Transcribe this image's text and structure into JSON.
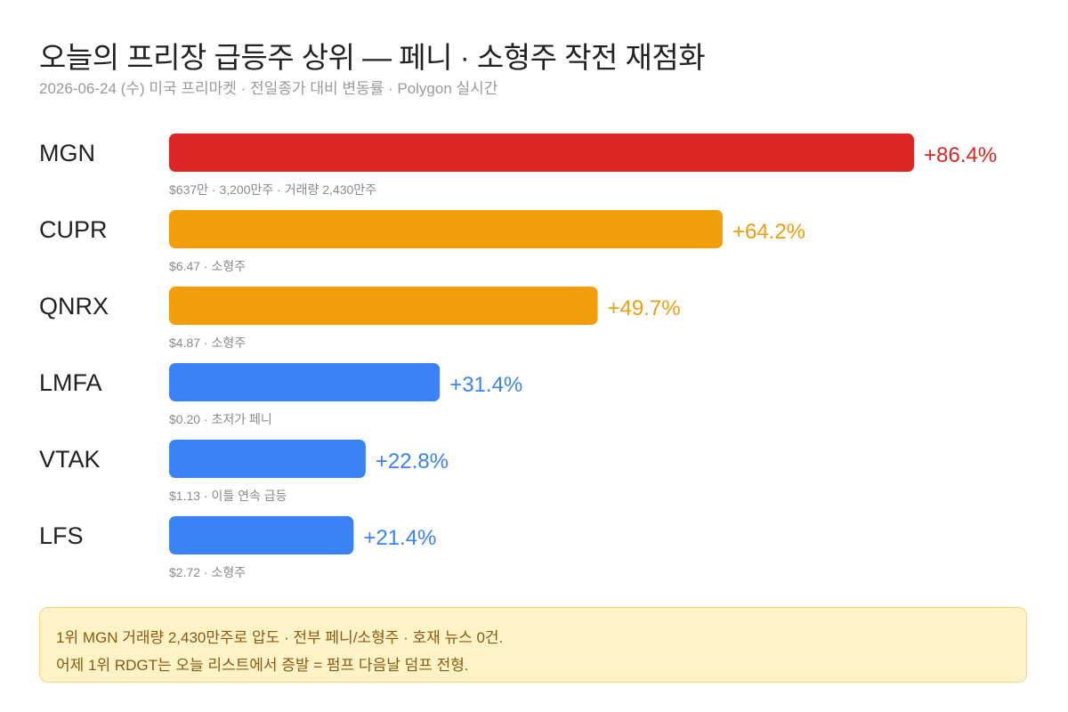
{
  "header": {
    "title": "오늘의 프리장 급등주 상위 — 페니 · 소형주 작전 재점화",
    "subtitle": "2026-06-24 (수) 미국 프리마켓 · 전일종가 대비 변동률 · Polygon 실시간"
  },
  "colors": {
    "red": "#dc2626",
    "orange": "#f29d0c",
    "blue": "#3b82f6",
    "note_bg": "#fef3c7",
    "note_text": "#8a5a14"
  },
  "chart_data": {
    "type": "bar",
    "orientation": "horizontal",
    "title": "오늘의 프리장 급등주 상위 — 페니 · 소형주 작전 재점화",
    "xlim": [
      0,
      86.4
    ],
    "grid": false,
    "categories": [
      "MGN",
      "CUPR",
      "QNRX",
      "LMFA",
      "VTAK",
      "LFS"
    ],
    "values": [
      86.4,
      64.2,
      49.7,
      31.4,
      22.8,
      21.4
    ],
    "value_labels": [
      "+86.4%",
      "+64.2%",
      "+49.7%",
      "+31.4%",
      "+22.8%",
      "+21.4%"
    ],
    "sublabels": [
      "$637만 · 3,200만주 · 거래량 2,430만주",
      "$6.47 · 소형주",
      "$4.87 · 소형주",
      "$0.20 · 초저가 페니",
      "$1.13 · 이틀 연속 급등",
      "$2.72 · 소형주"
    ],
    "bar_colors": [
      "#dc2626",
      "#f29d0c",
      "#f29d0c",
      "#3b82f6",
      "#3b82f6",
      "#3b82f6"
    ]
  },
  "note": {
    "line1": "1위 MGN 거래량 2,430만주로 압도 · 전부 페니/소형주 · 호재 뉴스 0건.",
    "line2": "어제 1위 RDGT는 오늘 리스트에서 증발 = 펌프 다음날 덤프 전형."
  }
}
